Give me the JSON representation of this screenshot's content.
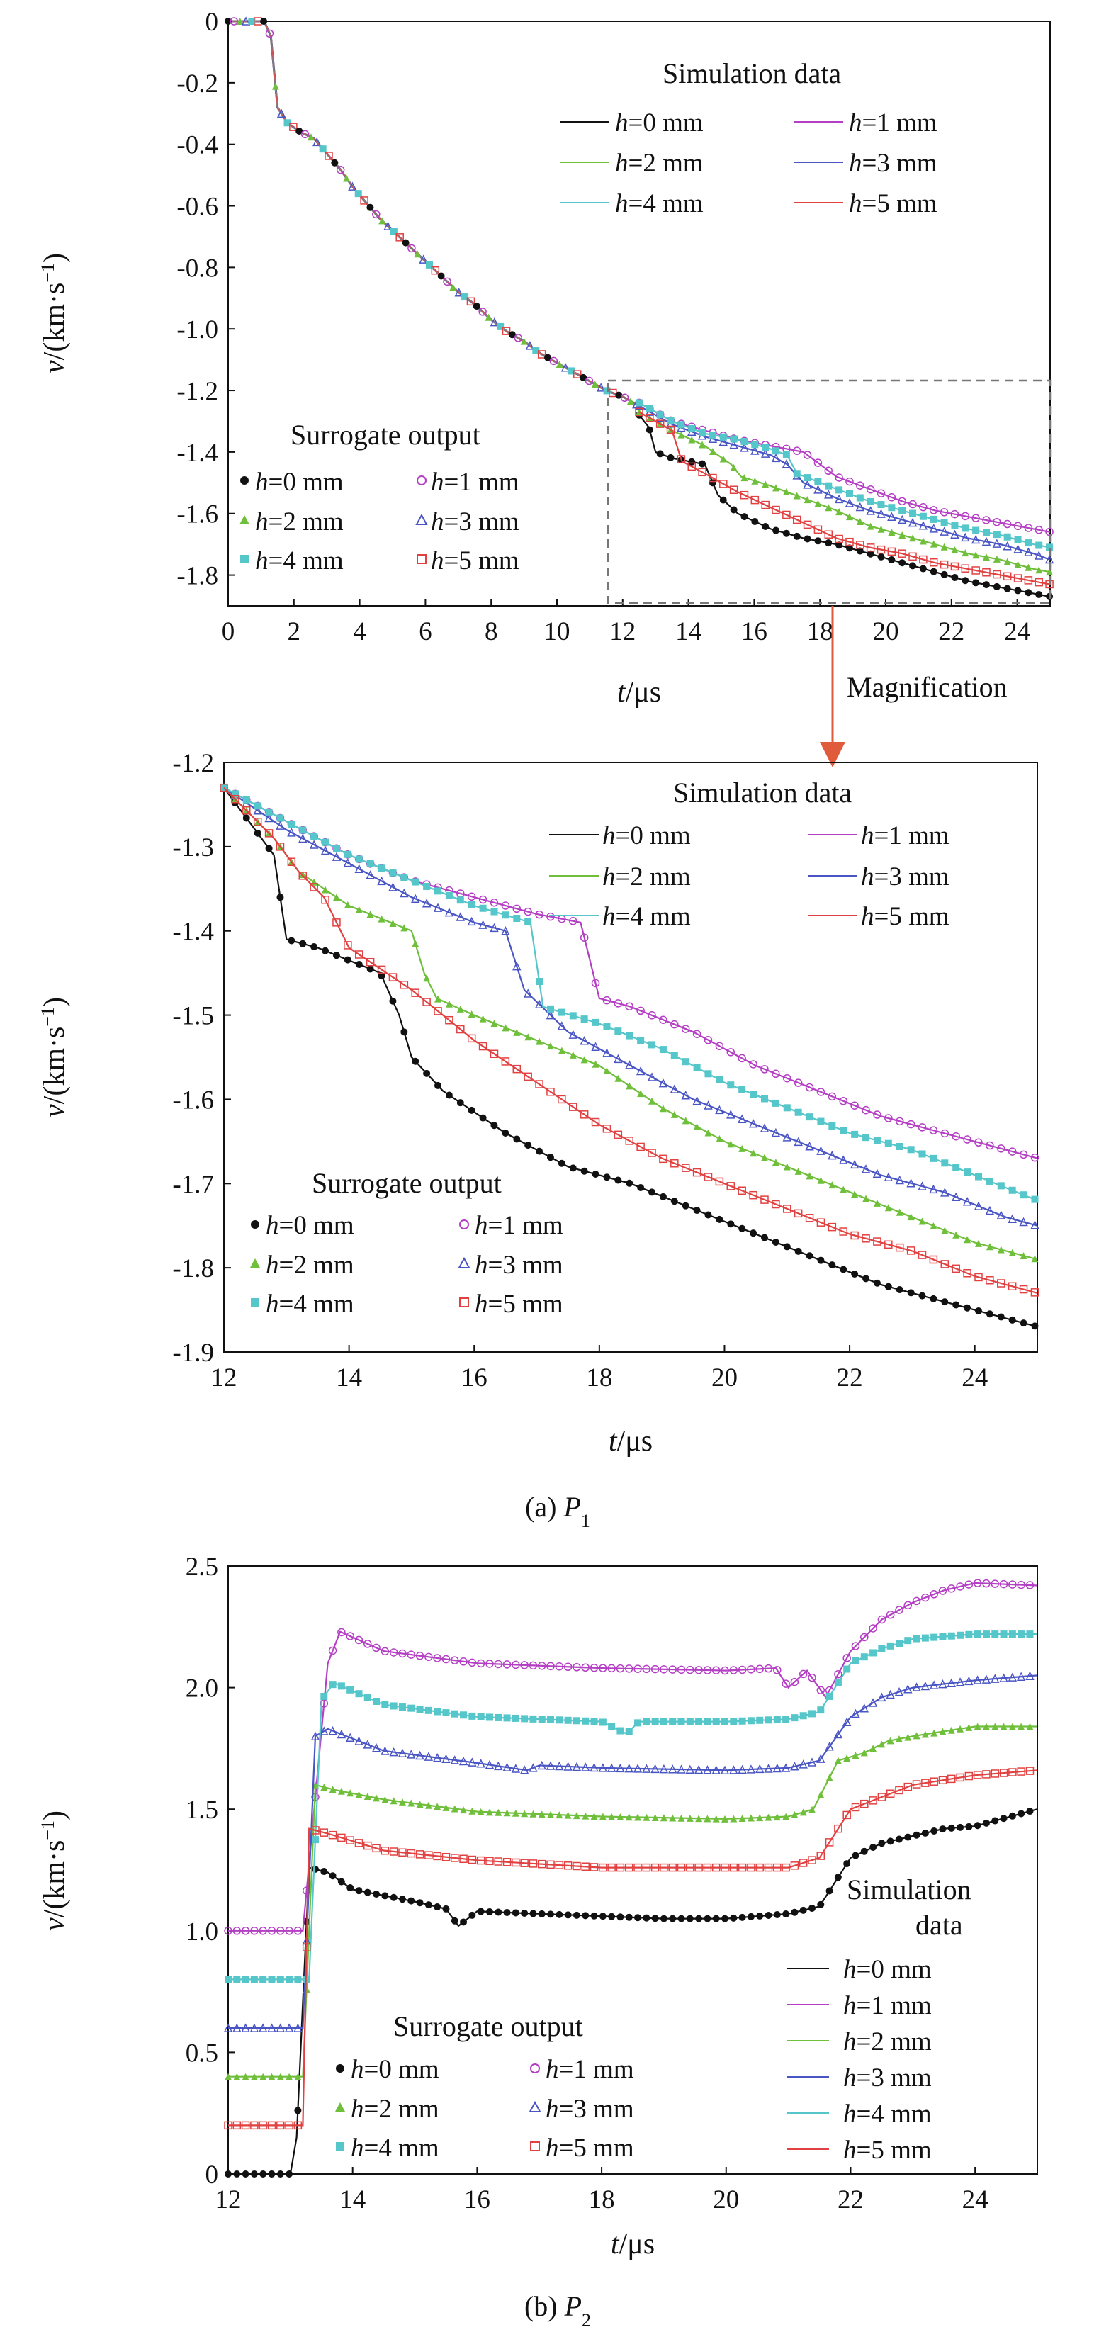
{
  "colors": {
    "h0": "#111111",
    "h1": "#b43ec4",
    "h2": "#6fbf3b",
    "h3": "#4a55c4",
    "h4": "#55c6c9",
    "h5": "#e24141",
    "axis": "#111111",
    "magnify": "#e05a3c",
    "dashbox": "#777777"
  },
  "labels": {
    "sim_header": "Simulation data",
    "sim_header_b_line1": "Simulation",
    "sim_header_b_line2": "data",
    "sur_header": "Surrogate output",
    "series_prefix": "h",
    "h0": "=0 mm",
    "h1": "=1 mm",
    "h2": "=2 mm",
    "h3": "=3 mm",
    "h4": "=4 mm",
    "h5": "=5 mm",
    "magnification": "Magnification",
    "ylabel_v": "v",
    "ylabel_units": "/(km·s",
    "ylabel_exp": "−1",
    "ylabel_close": ")",
    "xlabel_t": "t",
    "xlabel_units": "/μs",
    "caption_a_prefix": "(a) ",
    "caption_a_var": "P",
    "caption_a_sub": "1",
    "caption_b_prefix": "(b) ",
    "caption_b_var": "P",
    "caption_b_sub": "2"
  },
  "chart_data": [
    {
      "type": "line",
      "panel": "(a) P1",
      "xlabel": "t/μs",
      "ylabel": "v/(km·s−1)",
      "xlim": [
        0,
        25
      ],
      "ylim": [
        -1.9,
        0
      ],
      "xticks": [
        0,
        2,
        4,
        6,
        8,
        10,
        12,
        14,
        16,
        18,
        20,
        22,
        24
      ],
      "yticks": [
        0,
        -0.2,
        -0.4,
        -0.6,
        -0.8,
        -1.0,
        -1.2,
        -1.4,
        -1.6,
        -1.8
      ],
      "xtick_labels": [
        "0",
        "2",
        "4",
        "6",
        "8",
        "10",
        "12",
        "14",
        "16",
        "18",
        "20",
        "22",
        "24"
      ],
      "ytick_labels": [
        "0",
        "-0.2",
        "-0.4",
        "-0.6",
        "-0.8",
        "-1.0",
        "-1.2",
        "-1.4",
        "-1.6",
        "-1.8"
      ],
      "legend_simulation": "top-right",
      "legend_surrogate": "bottom-left",
      "common_curve": {
        "x": [
          0,
          1.1,
          1.3,
          1.5,
          1.8,
          2.2,
          2.6,
          3.0,
          3.4,
          3.8,
          4.2,
          4.6,
          5.0,
          5.5,
          6.0,
          6.5,
          7.0,
          7.5,
          8.0,
          8.5,
          9.0,
          9.5,
          10.0,
          10.5,
          11.0,
          11.5,
          12.0,
          12.5
        ],
        "y": [
          0,
          0,
          -0.05,
          -0.28,
          -0.33,
          -0.36,
          -0.38,
          -0.43,
          -0.48,
          -0.54,
          -0.59,
          -0.64,
          -0.68,
          -0.73,
          -0.78,
          -0.83,
          -0.88,
          -0.92,
          -0.97,
          -1.01,
          -1.04,
          -1.08,
          -1.11,
          -1.14,
          -1.17,
          -1.2,
          -1.22,
          -1.25
        ]
      },
      "series": [
        {
          "name": "h=0 mm",
          "x": [
            12.5,
            12.8,
            13.0,
            13.5,
            14.5,
            14.9,
            15.5,
            16.5,
            17.5,
            18.5,
            19.5,
            20.5,
            21.5,
            22.5,
            23.5,
            24.5,
            25.0
          ],
          "y": [
            -1.28,
            -1.32,
            -1.4,
            -1.42,
            -1.44,
            -1.54,
            -1.6,
            -1.65,
            -1.68,
            -1.7,
            -1.73,
            -1.76,
            -1.79,
            -1.82,
            -1.84,
            -1.86,
            -1.87
          ]
        },
        {
          "name": "h=1 mm",
          "x": [
            12.5,
            13.5,
            14.5,
            15.5,
            16.5,
            17.5,
            18.0,
            18.5,
            19.5,
            20.5,
            21.5,
            22.5,
            23.5,
            24.5,
            25.0
          ],
          "y": [
            -1.24,
            -1.3,
            -1.33,
            -1.36,
            -1.38,
            -1.4,
            -1.44,
            -1.48,
            -1.52,
            -1.56,
            -1.59,
            -1.61,
            -1.63,
            -1.65,
            -1.66
          ]
        },
        {
          "name": "h=2 mm",
          "x": [
            12.5,
            13.0,
            13.5,
            14.5,
            15.3,
            15.6,
            16.5,
            17.5,
            18.5,
            19.5,
            20.5,
            21.5,
            22.5,
            23.5,
            24.5,
            25.0
          ],
          "y": [
            -1.27,
            -1.3,
            -1.33,
            -1.38,
            -1.44,
            -1.48,
            -1.51,
            -1.55,
            -1.59,
            -1.64,
            -1.67,
            -1.7,
            -1.73,
            -1.75,
            -1.78,
            -1.79
          ]
        },
        {
          "name": "h=3 mm",
          "x": [
            12.5,
            13.5,
            14.5,
            15.5,
            16.5,
            17.0,
            17.5,
            18.5,
            19.5,
            20.5,
            21.5,
            22.5,
            23.5,
            24.5,
            25.0
          ],
          "y": [
            -1.25,
            -1.31,
            -1.35,
            -1.38,
            -1.41,
            -1.44,
            -1.5,
            -1.55,
            -1.59,
            -1.62,
            -1.65,
            -1.68,
            -1.7,
            -1.73,
            -1.75
          ]
        },
        {
          "name": "h=4 mm",
          "x": [
            12.5,
            13.5,
            14.5,
            15.5,
            16.5,
            17.0,
            17.3,
            18.5,
            19.5,
            20.5,
            21.5,
            22.5,
            23.5,
            24.5,
            25.0
          ],
          "y": [
            -1.24,
            -1.3,
            -1.34,
            -1.36,
            -1.39,
            -1.41,
            -1.47,
            -1.52,
            -1.56,
            -1.59,
            -1.62,
            -1.65,
            -1.67,
            -1.7,
            -1.71
          ]
        },
        {
          "name": "h=5 mm",
          "x": [
            12.5,
            13.0,
            13.5,
            13.8,
            14.5,
            15.5,
            16.5,
            17.5,
            18.5,
            19.5,
            20.5,
            21.5,
            22.5,
            23.5,
            24.5,
            25.0
          ],
          "y": [
            -1.27,
            -1.3,
            -1.33,
            -1.43,
            -1.47,
            -1.53,
            -1.58,
            -1.63,
            -1.68,
            -1.71,
            -1.73,
            -1.76,
            -1.78,
            -1.8,
            -1.82,
            -1.83
          ]
        }
      ]
    },
    {
      "type": "line",
      "panel": "(a) P1 magnified",
      "xlabel": "t/μs",
      "ylabel": "v/(km·s−1)",
      "xlim": [
        12,
        25
      ],
      "ylim": [
        -1.9,
        -1.2
      ],
      "xticks": [
        12,
        14,
        16,
        18,
        20,
        22,
        24
      ],
      "yticks": [
        -1.2,
        -1.3,
        -1.4,
        -1.5,
        -1.6,
        -1.7,
        -1.8,
        -1.9
      ],
      "xtick_labels": [
        "12",
        "14",
        "16",
        "18",
        "20",
        "22",
        "24"
      ],
      "ytick_labels": [
        "-1.2",
        "-1.3",
        "-1.4",
        "-1.5",
        "-1.6",
        "-1.7",
        "-1.8",
        "-1.9"
      ],
      "legend_simulation": "top-right",
      "legend_surrogate": "bottom-left",
      "series": [
        {
          "name": "h=0 mm",
          "x": [
            12.0,
            12.4,
            12.8,
            13.0,
            13.5,
            14.5,
            14.8,
            15.0,
            15.5,
            16.5,
            17.5,
            18.0,
            18.5,
            19.5,
            20.5,
            21.5,
            22.5,
            23.5,
            24.5,
            25.0
          ],
          "y": [
            -1.23,
            -1.27,
            -1.31,
            -1.41,
            -1.42,
            -1.45,
            -1.5,
            -1.55,
            -1.59,
            -1.64,
            -1.68,
            -1.69,
            -1.7,
            -1.73,
            -1.76,
            -1.79,
            -1.82,
            -1.84,
            -1.86,
            -1.87
          ]
        },
        {
          "name": "h=1 mm",
          "x": [
            12.0,
            13.0,
            14.0,
            15.0,
            16.0,
            17.0,
            17.7,
            18.0,
            18.5,
            19.5,
            20.5,
            21.5,
            22.5,
            23.5,
            24.5,
            25.0
          ],
          "y": [
            -1.23,
            -1.27,
            -1.31,
            -1.34,
            -1.36,
            -1.38,
            -1.39,
            -1.48,
            -1.49,
            -1.52,
            -1.56,
            -1.59,
            -1.62,
            -1.64,
            -1.66,
            -1.67
          ]
        },
        {
          "name": "h=2 mm",
          "x": [
            12.0,
            12.8,
            13.2,
            14.0,
            15.0,
            15.2,
            15.4,
            16.0,
            17.0,
            18.0,
            19.0,
            20.0,
            21.0,
            22.0,
            23.0,
            24.0,
            25.0
          ],
          "y": [
            -1.23,
            -1.29,
            -1.33,
            -1.37,
            -1.4,
            -1.45,
            -1.48,
            -1.5,
            -1.53,
            -1.56,
            -1.61,
            -1.65,
            -1.68,
            -1.71,
            -1.74,
            -1.77,
            -1.79
          ]
        },
        {
          "name": "h=3 mm",
          "x": [
            12.0,
            13.0,
            14.0,
            15.0,
            16.0,
            16.5,
            16.8,
            17.5,
            18.5,
            19.5,
            20.5,
            21.5,
            22.5,
            23.5,
            24.5,
            25.0
          ],
          "y": [
            -1.23,
            -1.28,
            -1.32,
            -1.36,
            -1.39,
            -1.4,
            -1.47,
            -1.52,
            -1.56,
            -1.6,
            -1.63,
            -1.66,
            -1.69,
            -1.71,
            -1.74,
            -1.75
          ]
        },
        {
          "name": "h=4 mm",
          "x": [
            12.0,
            13.0,
            14.0,
            15.0,
            16.0,
            16.9,
            17.1,
            18.0,
            19.0,
            20.0,
            21.0,
            22.0,
            23.0,
            24.0,
            25.0
          ],
          "y": [
            -1.23,
            -1.27,
            -1.31,
            -1.34,
            -1.37,
            -1.39,
            -1.49,
            -1.51,
            -1.54,
            -1.58,
            -1.61,
            -1.64,
            -1.66,
            -1.69,
            -1.72
          ]
        },
        {
          "name": "h=5 mm",
          "x": [
            12.0,
            12.8,
            13.2,
            13.6,
            14.0,
            15.0,
            16.0,
            17.0,
            18.0,
            19.0,
            20.0,
            21.0,
            22.0,
            23.0,
            24.0,
            25.0
          ],
          "y": [
            -1.23,
            -1.29,
            -1.33,
            -1.36,
            -1.42,
            -1.47,
            -1.53,
            -1.58,
            -1.63,
            -1.67,
            -1.7,
            -1.73,
            -1.76,
            -1.78,
            -1.81,
            -1.83
          ]
        }
      ]
    },
    {
      "type": "line",
      "panel": "(b) P2",
      "xlabel": "t/μs",
      "ylabel": "v/(km·s−1)",
      "xlim": [
        12,
        25
      ],
      "ylim": [
        0,
        2.5
      ],
      "xticks": [
        12,
        14,
        16,
        18,
        20,
        22,
        24
      ],
      "yticks": [
        0,
        0.5,
        1.0,
        1.5,
        2.0,
        2.5
      ],
      "xtick_labels": [
        "12",
        "14",
        "16",
        "18",
        "20",
        "22",
        "24"
      ],
      "ytick_labels": [
        "0",
        "0.5",
        "1.0",
        "1.5",
        "2.0",
        "2.5"
      ],
      "legend_simulation": "right",
      "legend_surrogate": "bottom-center",
      "series": [
        {
          "name": "h=0 mm",
          "x": [
            12.0,
            13.0,
            13.1,
            13.3,
            13.6,
            14.0,
            15.0,
            15.5,
            15.7,
            16.0,
            17.0,
            18.0,
            19.0,
            20.0,
            21.0,
            21.5,
            22.0,
            22.5,
            23.0,
            23.5,
            24.0,
            25.0
          ],
          "y": [
            0.0,
            0.0,
            0.15,
            1.26,
            1.24,
            1.17,
            1.12,
            1.09,
            1.02,
            1.08,
            1.07,
            1.06,
            1.05,
            1.05,
            1.07,
            1.1,
            1.3,
            1.36,
            1.39,
            1.42,
            1.43,
            1.5
          ]
        },
        {
          "name": "h=1 mm",
          "x": [
            12.0,
            13.2,
            13.6,
            13.8,
            14.5,
            16.0,
            18.0,
            20.0,
            20.8,
            21.0,
            21.3,
            21.6,
            22.0,
            22.5,
            23.0,
            23.5,
            24.0,
            25.0
          ],
          "y": [
            1.0,
            1.0,
            2.1,
            2.23,
            2.15,
            2.1,
            2.08,
            2.07,
            2.08,
            2.0,
            2.07,
            1.96,
            2.15,
            2.28,
            2.35,
            2.4,
            2.43,
            2.42
          ]
        },
        {
          "name": "h=2 mm",
          "x": [
            12.0,
            13.2,
            13.4,
            13.7,
            14.5,
            16.0,
            18.0,
            20.0,
            21.0,
            21.4,
            21.8,
            22.2,
            22.6,
            23.0,
            24.0,
            25.0
          ],
          "y": [
            0.4,
            0.4,
            1.6,
            1.58,
            1.54,
            1.49,
            1.47,
            1.46,
            1.47,
            1.5,
            1.7,
            1.73,
            1.78,
            1.8,
            1.84,
            1.84
          ]
        },
        {
          "name": "h=3 mm",
          "x": [
            12.0,
            13.2,
            13.4,
            13.6,
            14.5,
            16.0,
            16.8,
            17.0,
            18.0,
            20.0,
            21.0,
            21.5,
            22.0,
            22.5,
            23.0,
            24.0,
            25.0
          ],
          "y": [
            0.6,
            0.6,
            1.8,
            1.83,
            1.74,
            1.69,
            1.66,
            1.68,
            1.67,
            1.66,
            1.67,
            1.7,
            1.88,
            1.96,
            2.0,
            2.03,
            2.05
          ]
        },
        {
          "name": "h=4 mm",
          "x": [
            12.0,
            13.3,
            13.5,
            13.7,
            14.5,
            16.0,
            18.0,
            18.4,
            18.6,
            20.0,
            21.0,
            21.5,
            22.0,
            22.5,
            23.0,
            24.0,
            25.0
          ],
          "y": [
            0.8,
            0.8,
            1.95,
            2.02,
            1.93,
            1.88,
            1.86,
            1.81,
            1.86,
            1.86,
            1.87,
            1.9,
            2.1,
            2.16,
            2.2,
            2.22,
            2.22
          ]
        },
        {
          "name": "h=5 mm",
          "x": [
            12.0,
            13.2,
            13.3,
            13.6,
            14.5,
            16.0,
            18.0,
            20.0,
            21.0,
            21.5,
            22.0,
            22.5,
            23.0,
            24.0,
            25.0
          ],
          "y": [
            0.2,
            0.2,
            1.42,
            1.4,
            1.33,
            1.29,
            1.26,
            1.26,
            1.26,
            1.3,
            1.5,
            1.55,
            1.6,
            1.64,
            1.66
          ]
        }
      ]
    }
  ]
}
